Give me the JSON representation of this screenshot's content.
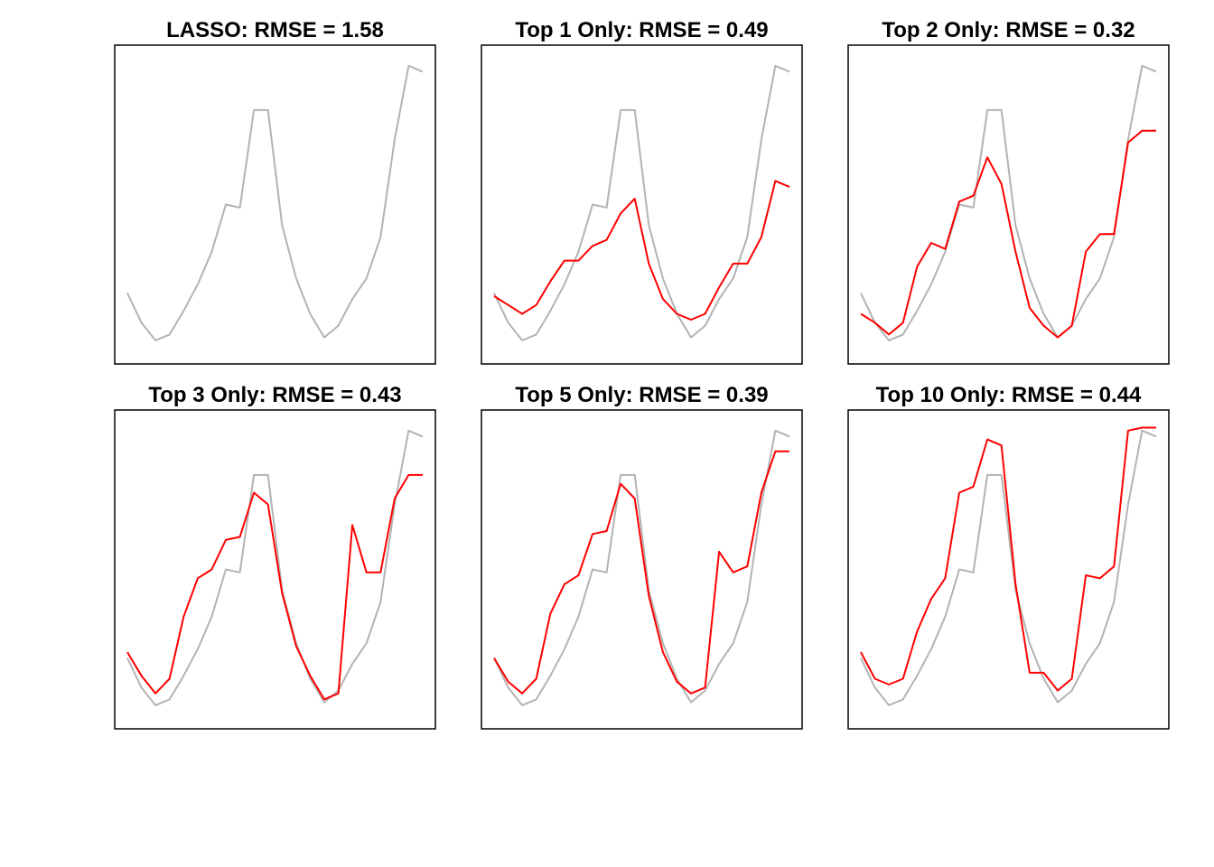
{
  "colors": {
    "actual": "#b3b3b3",
    "predicted": "#ff0000",
    "frame": "#000000",
    "background": "#ffffff"
  },
  "chart_data": [
    {
      "type": "line",
      "title": "LASSO: RMSE = 1.58",
      "xlim": [
        1,
        22
      ],
      "ylim": [
        0,
        100
      ],
      "axes_visible": false,
      "grid": false,
      "x": [
        1,
        2,
        3,
        4,
        5,
        6,
        7,
        8,
        9,
        10,
        11,
        12,
        13,
        14,
        15,
        16,
        17,
        18,
        19,
        20,
        21,
        22
      ],
      "series": [
        {
          "role": "actual",
          "values": [
            20,
            10,
            4,
            6,
            14,
            23,
            34,
            50,
            49,
            82,
            82,
            43,
            25,
            13,
            5,
            9,
            18,
            25,
            39,
            72,
            97,
            95
          ]
        }
      ]
    },
    {
      "type": "line",
      "title": "Top 1 Only: RMSE = 0.49",
      "xlim": [
        1,
        22
      ],
      "ylim": [
        0,
        100
      ],
      "axes_visible": false,
      "grid": false,
      "x": [
        1,
        2,
        3,
        4,
        5,
        6,
        7,
        8,
        9,
        10,
        11,
        12,
        13,
        14,
        15,
        16,
        17,
        18,
        19,
        20,
        21,
        22
      ],
      "series": [
        {
          "role": "actual",
          "values": [
            20,
            10,
            4,
            6,
            14,
            23,
            34,
            50,
            49,
            82,
            82,
            43,
            25,
            13,
            5,
            9,
            18,
            25,
            39,
            72,
            97,
            95
          ]
        },
        {
          "role": "predicted",
          "values": [
            19,
            16,
            13,
            16,
            24,
            31,
            31,
            36,
            38,
            47,
            52,
            30,
            18,
            13,
            11,
            13,
            22,
            30,
            30,
            39,
            58,
            56
          ]
        }
      ]
    },
    {
      "type": "line",
      "title": "Top 2 Only: RMSE = 0.32",
      "xlim": [
        1,
        22
      ],
      "ylim": [
        0,
        100
      ],
      "axes_visible": false,
      "grid": false,
      "x": [
        1,
        2,
        3,
        4,
        5,
        6,
        7,
        8,
        9,
        10,
        11,
        12,
        13,
        14,
        15,
        16,
        17,
        18,
        19,
        20,
        21,
        22
      ],
      "series": [
        {
          "role": "actual",
          "values": [
            20,
            10,
            4,
            6,
            14,
            23,
            34,
            50,
            49,
            82,
            82,
            43,
            25,
            13,
            5,
            9,
            18,
            25,
            39,
            72,
            97,
            95
          ]
        },
        {
          "role": "predicted",
          "values": [
            13,
            10,
            6,
            10,
            29,
            37,
            35,
            51,
            53,
            66,
            57,
            34,
            15,
            9,
            5,
            9,
            34,
            40,
            40,
            71,
            75,
            75
          ]
        }
      ]
    },
    {
      "type": "line",
      "title": "Top 3 Only: RMSE = 0.43",
      "xlim": [
        1,
        22
      ],
      "ylim": [
        0,
        100
      ],
      "axes_visible": false,
      "grid": false,
      "x": [
        1,
        2,
        3,
        4,
        5,
        6,
        7,
        8,
        9,
        10,
        11,
        12,
        13,
        14,
        15,
        16,
        17,
        18,
        19,
        20,
        21,
        22
      ],
      "series": [
        {
          "role": "actual",
          "values": [
            20,
            10,
            4,
            6,
            14,
            23,
            34,
            50,
            49,
            82,
            82,
            43,
            25,
            13,
            5,
            9,
            18,
            25,
            39,
            72,
            97,
            95
          ]
        },
        {
          "role": "predicted",
          "values": [
            22,
            14,
            8,
            13,
            34,
            47,
            50,
            60,
            61,
            76,
            72,
            42,
            24,
            14,
            6,
            8,
            65,
            49,
            49,
            74,
            82,
            82
          ]
        }
      ]
    },
    {
      "type": "line",
      "title": "Top 5 Only: RMSE = 0.39",
      "xlim": [
        1,
        22
      ],
      "ylim": [
        0,
        100
      ],
      "axes_visible": false,
      "grid": false,
      "x": [
        1,
        2,
        3,
        4,
        5,
        6,
        7,
        8,
        9,
        10,
        11,
        12,
        13,
        14,
        15,
        16,
        17,
        18,
        19,
        20,
        21,
        22
      ],
      "series": [
        {
          "role": "actual",
          "values": [
            20,
            10,
            4,
            6,
            14,
            23,
            34,
            50,
            49,
            82,
            82,
            43,
            25,
            13,
            5,
            9,
            18,
            25,
            39,
            72,
            97,
            95
          ]
        },
        {
          "role": "predicted",
          "values": [
            20,
            12,
            8,
            13,
            35,
            45,
            48,
            62,
            63,
            79,
            74,
            41,
            22,
            12,
            8,
            10,
            56,
            49,
            51,
            76,
            90,
            90
          ]
        }
      ]
    },
    {
      "type": "line",
      "title": "Top 10 Only: RMSE = 0.44",
      "xlim": [
        1,
        22
      ],
      "ylim": [
        0,
        100
      ],
      "axes_visible": false,
      "grid": false,
      "x": [
        1,
        2,
        3,
        4,
        5,
        6,
        7,
        8,
        9,
        10,
        11,
        12,
        13,
        14,
        15,
        16,
        17,
        18,
        19,
        20,
        21,
        22
      ],
      "series": [
        {
          "role": "actual",
          "values": [
            20,
            10,
            4,
            6,
            14,
            23,
            34,
            50,
            49,
            82,
            82,
            43,
            25,
            13,
            5,
            9,
            18,
            25,
            39,
            72,
            97,
            95
          ]
        },
        {
          "role": "predicted",
          "values": [
            22,
            13,
            11,
            13,
            29,
            40,
            47,
            76,
            78,
            94,
            92,
            45,
            15,
            15,
            9,
            13,
            48,
            47,
            51,
            97,
            98,
            98
          ]
        }
      ]
    }
  ]
}
